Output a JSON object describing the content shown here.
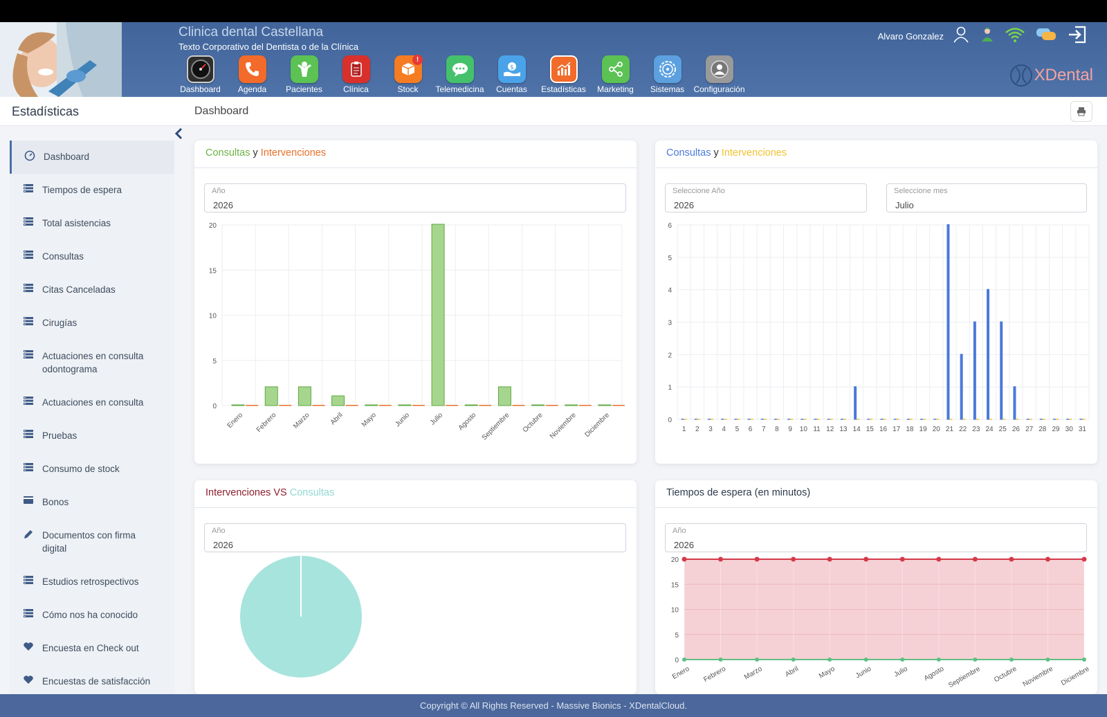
{
  "header": {
    "clinic_name": "Clinica dental Castellana",
    "clinic_subtitle": "Texto Corporativo del Dentista o de la Clínica",
    "user_name": "Alvaro Gonzalez",
    "logo_text": "XDental",
    "modules": [
      {
        "label": "Dashboard",
        "icon": "speedometer-icon",
        "color": "#3a3a3a"
      },
      {
        "label": "Agenda",
        "icon": "phone-icon",
        "color": "#f26b2a"
      },
      {
        "label": "Pacientes",
        "icon": "person-icon",
        "color": "#5cc254"
      },
      {
        "label": "Clínica",
        "icon": "clipboard-icon",
        "color": "#d9302c"
      },
      {
        "label": "Stock",
        "icon": "box-icon",
        "color": "#f57c22",
        "badge": "!"
      },
      {
        "label": "Telemedicina",
        "icon": "chat-icon",
        "color": "#45c16c"
      },
      {
        "label": "Cuentas",
        "icon": "money-icon",
        "color": "#4aa3e8"
      },
      {
        "label": "Estadísticas",
        "icon": "chart-icon",
        "color": "#f26b2a"
      },
      {
        "label": "Marketing",
        "icon": "share-icon",
        "color": "#5cc254"
      },
      {
        "label": "Sistemas",
        "icon": "gear-icon",
        "color": "#5ca0e0"
      },
      {
        "label": "Configuración",
        "icon": "user-settings-icon",
        "color": "#9a9a9a"
      }
    ]
  },
  "subheader": {
    "section": "Estadísticas",
    "page": "Dashboard"
  },
  "sidebar": {
    "items": [
      {
        "label": "Dashboard",
        "icon": "dashboard-icon"
      },
      {
        "label": "Tiempos de espera",
        "icon": "list-icon"
      },
      {
        "label": "Total asistencias",
        "icon": "list-icon"
      },
      {
        "label": "Consultas",
        "icon": "list-icon"
      },
      {
        "label": "Citas Canceladas",
        "icon": "list-icon"
      },
      {
        "label": "Cirugías",
        "icon": "list-icon"
      },
      {
        "label": "Actuaciones en consulta odontograma",
        "icon": "list-icon"
      },
      {
        "label": "Actuaciones en consulta",
        "icon": "list-icon"
      },
      {
        "label": "Pruebas",
        "icon": "list-icon"
      },
      {
        "label": "Consumo de stock",
        "icon": "list-icon"
      },
      {
        "label": "Bonos",
        "icon": "card-icon"
      },
      {
        "label": "Documentos con firma digital",
        "icon": "pencil-icon"
      },
      {
        "label": "Estudios retrospectivos",
        "icon": "list-icon"
      },
      {
        "label": "Cómo nos ha conocido",
        "icon": "list-icon"
      },
      {
        "label": "Encuesta en Check out",
        "icon": "heart-icon"
      },
      {
        "label": "Encuestas de satisfacción",
        "icon": "heart-icon"
      }
    ]
  },
  "panels": {
    "p1": {
      "title_a": "Consultas",
      "title_b": " y ",
      "title_c": "Intervenciones",
      "year_label": "Año",
      "year_value": "2026"
    },
    "p2": {
      "title_a": "Consultas",
      "title_b": " y ",
      "title_c": "Intervenciones",
      "year_label": "Seleccione Año",
      "year_value": "2026",
      "month_label": "Seleccione mes",
      "month_value": "Julio"
    },
    "p3": {
      "title_a": "Intervenciones",
      "title_b": " VS ",
      "title_c": "Consultas",
      "year_label": "Año",
      "year_value": "2026"
    },
    "p4": {
      "title": "Tiempos de espera (en minutos)",
      "year_label": "Año",
      "year_value": "2026"
    }
  },
  "footer": {
    "text": "Copyright © All Rights Reserved - Massive Bionics - XDentalCloud."
  },
  "colors": {
    "green": "#8fcc76",
    "orange": "#e8702a",
    "blue": "#4a79d9",
    "yellow": "#f2c230",
    "teal": "#a7e4dd",
    "red": "#d33a4a",
    "header": "#4b6b9f"
  },
  "chart_data": [
    {
      "type": "bar",
      "categories": [
        "Enero",
        "Febrero",
        "Marzo",
        "Abril",
        "Mayo",
        "Junio",
        "Julio",
        "Agosto",
        "Septiembre",
        "Octubre",
        "Noviembre",
        "Diciembre"
      ],
      "series": [
        {
          "values": [
            0,
            2,
            2,
            1,
            0,
            0,
            20,
            0,
            2,
            0,
            0,
            0
          ]
        },
        {
          "values": [
            0,
            0,
            0,
            0,
            0,
            0,
            0,
            0,
            0,
            0,
            0,
            0
          ]
        }
      ],
      "ylim": [
        0,
        20
      ],
      "yticks": [
        0,
        5,
        10,
        15,
        20
      ],
      "grid": true
    },
    {
      "type": "bar",
      "categories": [
        "1",
        "2",
        "3",
        "4",
        "5",
        "6",
        "7",
        "8",
        "9",
        "10",
        "11",
        "12",
        "13",
        "14",
        "15",
        "16",
        "17",
        "18",
        "19",
        "20",
        "21",
        "22",
        "23",
        "24",
        "25",
        "26",
        "27",
        "28",
        "29",
        "30",
        "31"
      ],
      "series": [
        {
          "values": [
            0,
            0,
            0,
            0,
            0,
            0,
            0,
            0,
            0,
            0,
            0,
            0,
            0,
            1,
            0,
            0,
            0,
            0,
            0,
            0,
            6,
            2,
            3,
            4,
            3,
            1,
            0,
            0,
            0,
            0,
            0
          ]
        },
        {
          "values": [
            0,
            0,
            0,
            0,
            0,
            0,
            0,
            0,
            0,
            0,
            0,
            0,
            0,
            0,
            0,
            0,
            0,
            0,
            0,
            0,
            0,
            0,
            0,
            0,
            0,
            0,
            0,
            0,
            0,
            0,
            0
          ]
        }
      ],
      "ylim": [
        0,
        6
      ],
      "yticks": [
        0,
        1,
        2,
        3,
        4,
        5,
        6
      ],
      "grid": true
    },
    {
      "type": "pie",
      "slices": [
        {
          "value": 29
        },
        {
          "value": 0
        }
      ]
    },
    {
      "type": "area",
      "categories": [
        "Enero",
        "Febrero",
        "Marzo",
        "Abril",
        "Mayo",
        "Junio",
        "Julio",
        "Agosto",
        "Septiembre",
        "Octubre",
        "Noviembre",
        "Diciembre"
      ],
      "series": [
        {
          "values": [
            20,
            20,
            20,
            20,
            20,
            20,
            20,
            20,
            20,
            20,
            20,
            20
          ]
        },
        {
          "values": [
            0,
            0,
            0,
            0,
            0,
            0,
            0,
            0,
            0,
            0,
            0,
            0
          ]
        }
      ],
      "ylim": [
        0,
        20
      ],
      "yticks": [
        0,
        5,
        10,
        15,
        20
      ],
      "grid": true
    }
  ]
}
